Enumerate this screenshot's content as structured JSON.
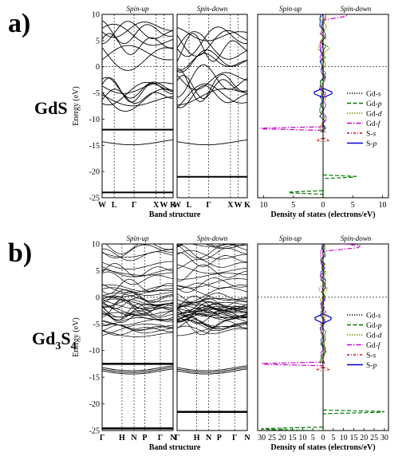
{
  "chart_data": [
    {
      "type": "line",
      "panel_label": "a)",
      "compound": "GdS",
      "band_structure": {
        "ylabel": "Energy (eV)",
        "xlabel": "Band structure",
        "ylim": [
          -25,
          10
        ],
        "yticks": [
          10,
          5,
          0,
          -5,
          -10,
          -15,
          -20,
          -25
        ],
        "spin_up_label": "Spin-up",
        "spin_down_label": "Spin-down",
        "kpoints": [
          "W",
          "L",
          "Γ",
          "X",
          "W",
          "K"
        ],
        "kpoint_fractions": [
          0,
          0.17,
          0.45,
          0.76,
          0.87,
          1
        ],
        "flat_levels_spin_up": [
          -12,
          -24
        ],
        "flat_levels_spin_down": [
          -21
        ]
      },
      "dos": {
        "xlabel": "Density of states (electrons/eV)",
        "xticks": [
          10,
          5,
          0,
          5,
          10
        ],
        "xlim": [
          -11,
          11
        ],
        "spin_up_label": "Spin-up",
        "spin_down_label": "Spin-down",
        "legend": [
          "Gd-s",
          "Gd-p",
          "Gd-d",
          "Gd-f",
          "S-s",
          "S-p"
        ],
        "legend_placement": "right",
        "series": [
          {
            "name": "Gd-f",
            "color": "#cc00cc",
            "peaks": [
              {
                "e": -11.8,
                "up": 10.5,
                "down": 0
              },
              {
                "e": 9.8,
                "up": 0,
                "down": 4.0
              }
            ]
          },
          {
            "name": "Gd-p",
            "color": "#007a00",
            "peaks": [
              {
                "e": -24.0,
                "up": 5.8,
                "down": 0
              },
              {
                "e": -21.0,
                "up": 0,
                "down": 5.5
              }
            ]
          },
          {
            "name": "S-p",
            "color": "#0000cc",
            "peaks": [
              {
                "e": -5.0,
                "up": 1.5,
                "down": 1.5
              }
            ]
          },
          {
            "name": "S-s",
            "color": "#dd0000",
            "peaks": [
              {
                "e": -14.0,
                "up": 1.0,
                "down": 1.0
              }
            ]
          },
          {
            "name": "Gd-d",
            "color": "#8a8a00",
            "peaks": [
              {
                "e": 3.5,
                "up": 0.8,
                "down": 1.0
              }
            ]
          }
        ]
      }
    },
    {
      "type": "line",
      "panel_label": "b)",
      "compound": "Gd3S4",
      "compound_base": "Gd",
      "compound_sub1": "3",
      "compound_mid": "S",
      "compound_sub2": "4",
      "band_structure": {
        "ylabel": "Energy (eV)",
        "xlabel": "Band structure",
        "ylim": [
          -25,
          10
        ],
        "yticks": [
          10,
          5,
          0,
          -5,
          -10,
          -15,
          -20,
          -25
        ],
        "spin_up_label": "Spin-up",
        "spin_down_label": "Spin-down",
        "kpoints": [
          "Γ",
          "H",
          "N",
          "P",
          "Γ",
          "N"
        ],
        "kpoint_fractions": [
          0,
          0.28,
          0.45,
          0.6,
          0.82,
          1
        ],
        "flat_levels_spin_up": [
          -12.5,
          -24.6
        ],
        "flat_levels_spin_down": [
          -21.5
        ]
      },
      "dos": {
        "xlabel": "Density of states (electrons/eV)",
        "xticks": [
          30,
          25,
          20,
          15,
          10,
          5,
          0,
          5,
          10,
          15,
          20,
          25,
          30
        ],
        "xlim": [
          -32,
          32
        ],
        "spin_up_label": "Spin-up",
        "spin_down_label": "Spin-down",
        "legend": [
          "Gd-s",
          "Gd-p",
          "Gd-d",
          "Gd-f",
          "S-s",
          "S-p"
        ],
        "legend_placement": "right",
        "series": [
          {
            "name": "Gd-f",
            "color": "#cc00cc",
            "peaks": [
              {
                "e": -12.5,
                "up": 30,
                "down": 0
              },
              {
                "e": 9.5,
                "up": 0,
                "down": 18
              }
            ]
          },
          {
            "name": "Gd-p",
            "color": "#007a00",
            "peaks": [
              {
                "e": -24.7,
                "up": 30,
                "down": 0
              },
              {
                "e": -21.5,
                "up": 0,
                "down": 30
              }
            ]
          },
          {
            "name": "S-p",
            "color": "#0000cc",
            "peaks": [
              {
                "e": -4.0,
                "up": 4,
                "down": 4
              }
            ]
          },
          {
            "name": "S-s",
            "color": "#dd0000",
            "peaks": [
              {
                "e": -13.5,
                "up": 3,
                "down": 3
              }
            ]
          },
          {
            "name": "Gd-d",
            "color": "#8a8a00",
            "peaks": [
              {
                "e": 1.5,
                "up": 2,
                "down": 2
              }
            ]
          }
        ]
      }
    }
  ],
  "legend_styles": [
    {
      "name": "Gd-s",
      "color": "#000000",
      "dash": "1.2 1.8"
    },
    {
      "name": "Gd-p",
      "color": "#007a00",
      "dash": "5 2.5"
    },
    {
      "name": "Gd-d",
      "color": "#8a8a00",
      "dash": "1.5 1.5"
    },
    {
      "name": "Gd-f",
      "color": "#cc00cc",
      "dash": "6 2 1.5 2"
    },
    {
      "name": "S-s",
      "color": "#dd0000",
      "dash": "3 2 1 2"
    },
    {
      "name": "S-p",
      "color": "#0000cc",
      "dash": ""
    }
  ]
}
